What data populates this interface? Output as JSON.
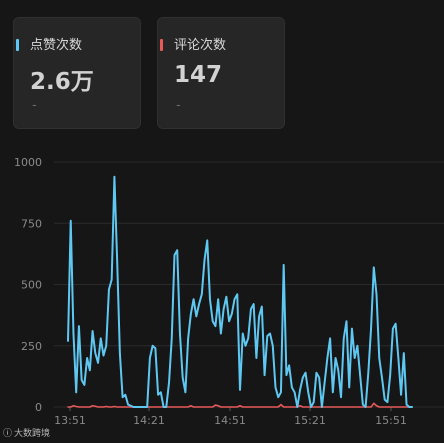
{
  "stats": [
    {
      "label": "点赞次数",
      "value": "2.6万",
      "sub": "-",
      "color": "#5ec8f2"
    },
    {
      "label": "评论次数",
      "value": "147",
      "sub": "-",
      "color": "#e85a5a"
    }
  ],
  "watermark": {
    "text": "大数跨境",
    "icon": "logo-icon"
  },
  "chart_data": {
    "type": "line",
    "ylim": [
      0,
      1000
    ],
    "yticks": [
      "0",
      "250",
      "500",
      "750",
      "1000"
    ],
    "xticks": [
      "13:51",
      "14:21",
      "14:51",
      "15:21",
      "15:51"
    ],
    "grid": true,
    "colors": {
      "likes": "#5ec8f2",
      "comments": "#e85a5a",
      "grid": "#2a2a2a",
      "axis": "#8a8a8a"
    },
    "series": [
      {
        "key": "likes",
        "values": [
          270,
          760,
          300,
          60,
          330,
          110,
          90,
          200,
          150,
          310,
          220,
          180,
          280,
          210,
          250,
          480,
          520,
          940,
          600,
          220,
          40,
          50,
          10,
          5,
          0,
          0,
          0,
          0,
          0,
          0,
          200,
          250,
          240,
          50,
          60,
          0,
          0,
          100,
          280,
          620,
          640,
          300,
          120,
          60,
          280,
          380,
          440,
          370,
          420,
          460,
          600,
          680,
          440,
          350,
          330,
          440,
          300,
          400,
          450,
          350,
          380,
          440,
          460,
          70,
          300,
          250,
          280,
          400,
          420,
          200,
          370,
          410,
          130,
          290,
          300,
          250,
          80,
          40,
          60,
          580,
          130,
          170,
          80,
          60,
          0,
          70,
          120,
          140,
          60,
          0,
          20,
          140,
          120,
          0,
          100,
          200,
          280,
          60,
          200,
          150,
          40,
          280,
          350,
          80,
          320,
          200,
          250,
          130,
          10,
          0,
          140,
          320,
          570,
          460,
          200,
          120,
          30,
          20,
          130,
          320,
          340,
          200,
          50,
          220,
          10,
          0,
          0
        ]
      },
      {
        "key": "comments",
        "values": [
          0,
          0,
          5,
          2,
          0,
          0,
          0,
          0,
          0,
          5,
          3,
          0,
          0,
          0,
          2,
          0,
          0,
          2,
          0,
          0,
          0,
          0,
          0,
          0,
          0,
          0,
          0,
          0,
          0,
          0,
          0,
          0,
          0,
          0,
          0,
          0,
          0,
          0,
          0,
          0,
          0,
          0,
          0,
          0,
          0,
          5,
          0,
          0,
          0,
          0,
          0,
          0,
          0,
          0,
          8,
          5,
          0,
          0,
          0,
          0,
          0,
          0,
          0,
          5,
          0,
          0,
          0,
          0,
          0,
          0,
          0,
          0,
          0,
          0,
          0,
          0,
          0,
          0,
          10,
          0,
          0,
          0,
          0,
          0,
          0,
          5,
          0,
          0,
          0,
          0,
          0,
          0,
          0,
          0,
          0,
          0,
          0,
          0,
          0,
          0,
          0,
          0,
          0,
          0,
          0,
          0,
          0,
          0,
          0,
          0,
          0,
          0,
          15,
          5,
          0,
          0,
          0,
          0,
          0,
          0,
          0,
          0,
          0,
          0,
          0,
          0,
          0
        ]
      }
    ]
  }
}
